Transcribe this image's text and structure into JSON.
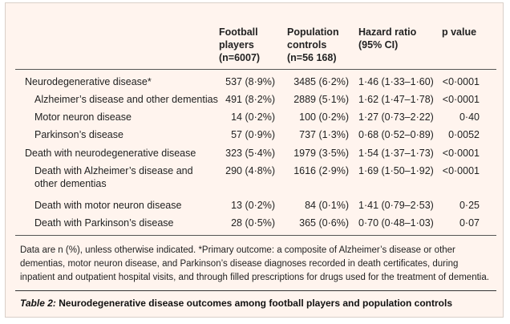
{
  "headers": {
    "football": [
      "Football",
      "players",
      "(n=6007)"
    ],
    "controls": [
      "Population",
      "controls",
      "(n=56 168)"
    ],
    "hazard": [
      "Hazard ratio",
      "(95% CI)"
    ],
    "pvalue": "p value"
  },
  "rows": [
    {
      "label": "Neurodegenerative disease*",
      "indent": false,
      "football": "537 (8·9%)",
      "controls": "3485 (6·2%)",
      "hr": "1·46 (1·33–1·60)",
      "p": "<0·0001"
    },
    {
      "label": "Alzheimer’s disease and other dementias",
      "indent": true,
      "football": "491 (8·2%)",
      "controls": "2889 (5·1%)",
      "hr": "1·62 (1·47–1·78)",
      "p": "<0·0001"
    },
    {
      "label": "Motor neuron disease",
      "indent": true,
      "football": "14 (0·2%)",
      "controls": "100 (0·2%)",
      "hr": "1·27 (0·73–2·22)",
      "p": "0·40"
    },
    {
      "label": "Parkinson’s disease",
      "indent": true,
      "football": "57 (0·9%)",
      "controls": "737 (1·3%)",
      "hr": "0·68 (0·52–0·89)",
      "p": "0·0052"
    },
    {
      "label": "Death with neurodegenerative disease",
      "indent": false,
      "football": "323 (5·4%)",
      "controls": "1979 (3·5%)",
      "hr": "1·54 (1·37–1·73)",
      "p": "<0·0001"
    },
    {
      "label": "Death with Alzheimer’s disease and",
      "label2": "other dementias",
      "indent": true,
      "football": "290 (4·8%)",
      "controls": "1616 (2·9%)",
      "hr": "1·69 (1·50–1·92)",
      "p": "<0·0001"
    },
    {
      "label": "Death with motor neuron disease",
      "indent": true,
      "football": "13 (0·2%)",
      "controls": "84 (0·1%)",
      "hr": "1·41 (0·79–2·53)",
      "p": "0·25"
    },
    {
      "label": "Death with Parkinson’s disease",
      "indent": true,
      "football": "28 (0·5%)",
      "controls": "365 (0·6%)",
      "hr": "0·70 (0·48–1·03)",
      "p": "0·07"
    }
  ],
  "footnote": "Data are n (%), unless otherwise indicated. *Primary outcome: a composite of Alzheimer’s disease or other dementias, motor neuron disease, and Parkinson’s disease diagnoses recorded in death certificates, during inpatient and outpatient hospital visits, and through filled prescriptions for drugs used for the treatment of dementia.",
  "caption": {
    "label": "Table 2:",
    "text": " Neurodegenerative disease outcomes among football players and population controls"
  }
}
